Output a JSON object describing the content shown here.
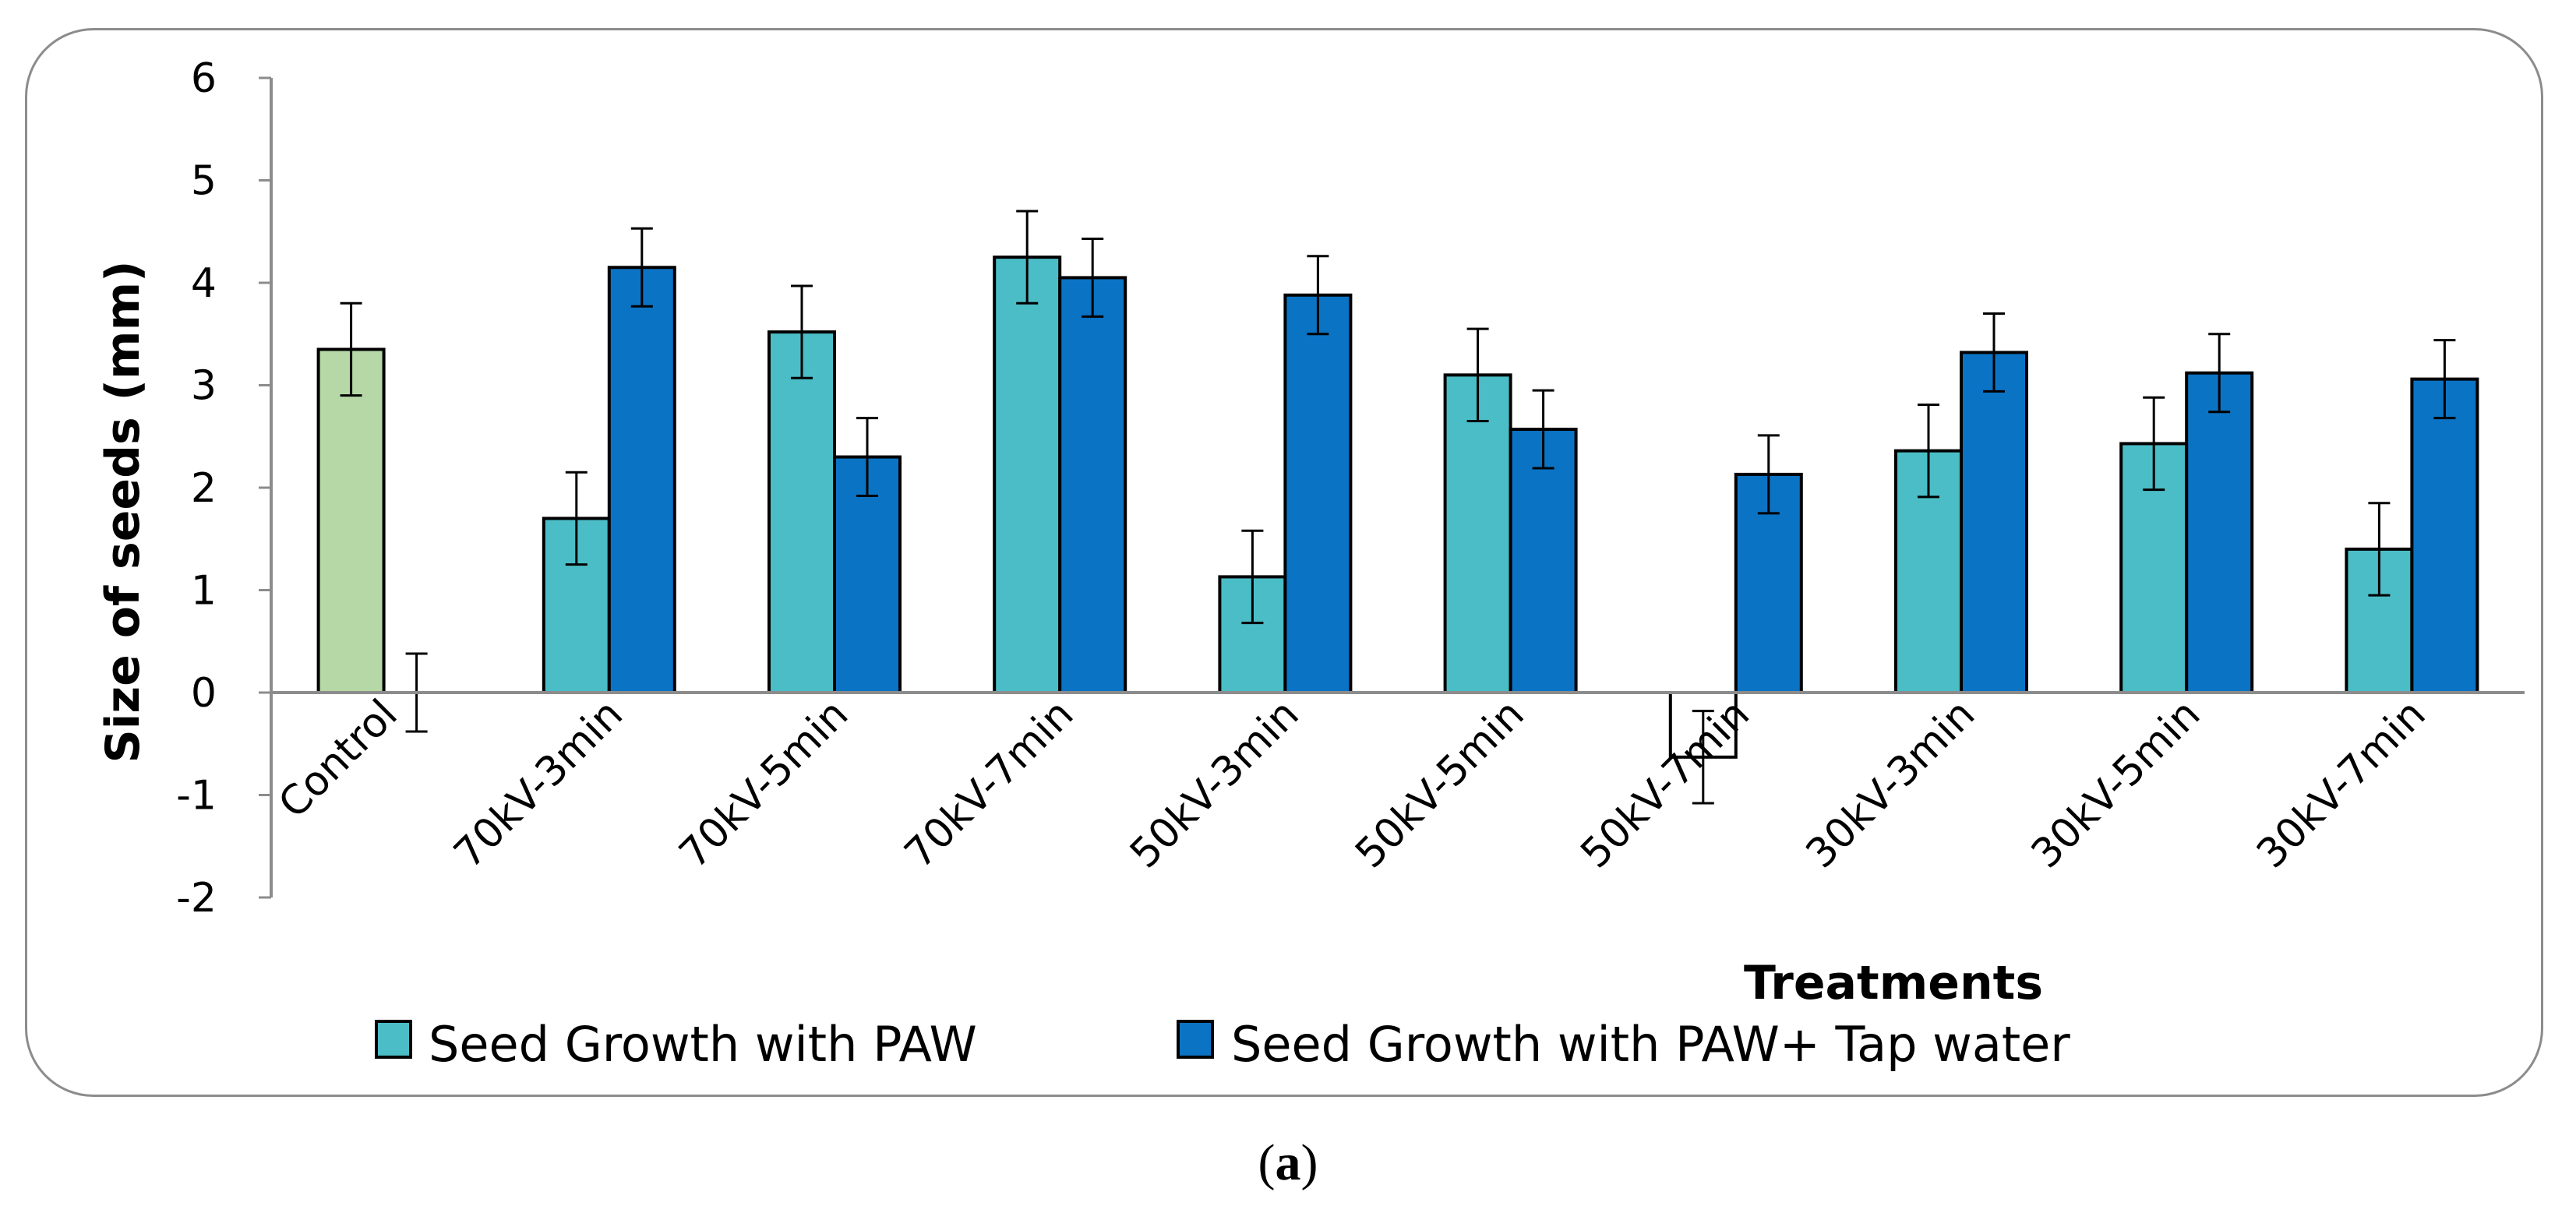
{
  "chart_data": {
    "type": "bar",
    "title": "",
    "xlabel": "Treatments",
    "ylabel": "Size of seeds (mm)",
    "ylim": [
      -2,
      6
    ],
    "yticks": [
      -2,
      -1,
      0,
      1,
      2,
      3,
      4,
      5,
      6
    ],
    "grid": false,
    "legend_position": "bottom",
    "categories": [
      "Control",
      "70kV-3min",
      "70kV-5min",
      "70kV-7min",
      "50kV-3min",
      "50kV-5min",
      "50kV-7min",
      "30kV-3min",
      "30kV-5min",
      "30kV-7min"
    ],
    "series": [
      {
        "name": "Seed Growth with PAW",
        "color": "#4bbdc6",
        "values": [
          3.35,
          1.7,
          3.52,
          4.25,
          1.13,
          3.1,
          -0.63,
          2.36,
          2.43,
          1.4
        ],
        "errors": [
          0.45,
          0.45,
          0.45,
          0.45,
          0.45,
          0.45,
          0.45,
          0.45,
          0.45,
          0.45
        ],
        "point_colors": [
          "#b5d8a6",
          null,
          null,
          null,
          null,
          null,
          "#ffffff",
          null,
          null,
          null
        ]
      },
      {
        "name": "Seed Growth with PAW+ Tap water",
        "color": "#0b73c4",
        "values": [
          0.0,
          4.15,
          2.3,
          4.05,
          3.88,
          2.57,
          2.13,
          3.32,
          3.12,
          3.06
        ],
        "errors": [
          0.38,
          0.38,
          0.38,
          0.38,
          0.38,
          0.38,
          0.38,
          0.38,
          0.38,
          0.38
        ]
      }
    ]
  },
  "caption": {
    "open": "(",
    "label": "a",
    "close": ")"
  }
}
